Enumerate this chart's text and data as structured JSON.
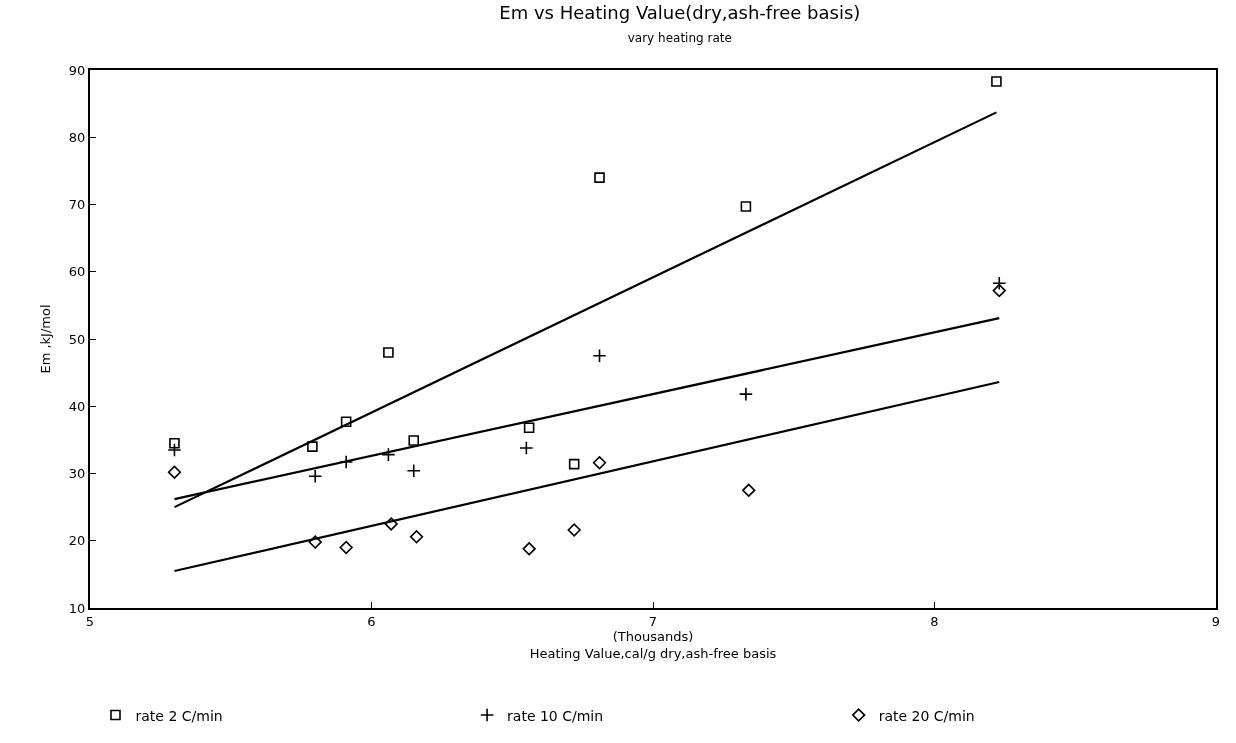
{
  "chart_data": {
    "type": "scatter",
    "title": "Em vs Heating Value(dry,ash-free basis)",
    "subtitle": "vary heating rate",
    "xlabel": "(Thousands)\nHeating Value,cal/g dry,ash-free basis",
    "ylabel": "Em ,kJ/mol",
    "xlim": [
      5,
      9
    ],
    "xticks": [
      5,
      6,
      7,
      8,
      9
    ],
    "ylim": [
      10,
      90
    ],
    "yticks": [
      10,
      20,
      30,
      40,
      50,
      60,
      70,
      80,
      90
    ],
    "legend": "bottom",
    "series": [
      {
        "name": "rate 2 C/min",
        "color": "#000000",
        "marker": "square",
        "x": [
          5.3,
          5.79,
          5.91,
          6.06,
          6.15,
          6.56,
          6.72,
          6.81,
          7.33,
          8.22
        ],
        "values": [
          34.5,
          34.0,
          37.7,
          48.0,
          34.9,
          36.8,
          31.4,
          74.0,
          69.7,
          88.3
        ]
      },
      {
        "name": "rate 10 C/min",
        "color": "#000000",
        "marker": "cross",
        "x": [
          5.3,
          5.8,
          5.91,
          6.06,
          6.15,
          6.55,
          6.81,
          7.33,
          8.23
        ],
        "values": [
          33.5,
          29.6,
          31.7,
          32.8,
          30.4,
          33.8,
          47.5,
          41.8,
          58.3
        ]
      },
      {
        "name": "rate 20 C/min",
        "color": "#000000",
        "marker": "diamond",
        "x": [
          5.3,
          5.8,
          5.91,
          6.07,
          6.16,
          6.56,
          6.72,
          6.81,
          7.34,
          8.23
        ],
        "values": [
          30.2,
          19.8,
          19.0,
          22.5,
          20.6,
          18.8,
          21.6,
          31.6,
          27.5,
          57.2
        ]
      },
      {
        "type": "line",
        "color": "#000000",
        "marker": "none",
        "x": [
          5.3,
          8.22
        ],
        "values": [
          25.0,
          83.7
        ]
      },
      {
        "type": "line",
        "color": "#000000",
        "marker": "none",
        "x": [
          5.3,
          8.23
        ],
        "values": [
          26.2,
          53.1
        ]
      },
      {
        "type": "line",
        "color": "#000000",
        "marker": "none",
        "x": [
          5.3,
          8.23
        ],
        "values": [
          15.5,
          43.6
        ]
      }
    ]
  }
}
